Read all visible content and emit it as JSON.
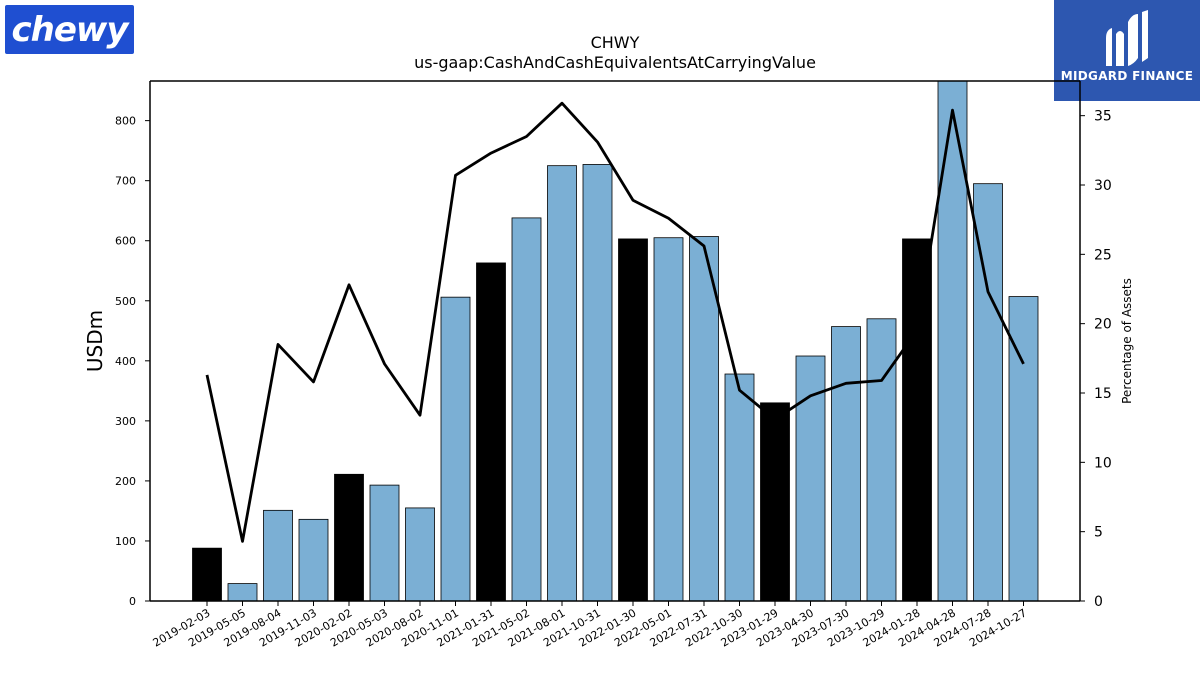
{
  "logos": {
    "left_text": "chewy",
    "right_text": "MIDGARD FINANCE"
  },
  "chart_data": {
    "type": "bar",
    "title": "CHWY",
    "subtitle": "us-gaap:CashAndCashEquivalentsAtCarryingValue",
    "xlabel": "",
    "ylabel": "USDm",
    "y2label": "Percentage of Assets",
    "ylim": [
      0,
      866
    ],
    "y2lim": [
      0,
      37.5
    ],
    "yticks": [
      0,
      100,
      200,
      300,
      400,
      500,
      600,
      700,
      800
    ],
    "y2ticks": [
      0,
      5,
      10,
      15,
      20,
      25,
      30,
      35
    ],
    "categories": [
      "2019-02-03",
      "2019-05-05",
      "2019-08-04",
      "2019-11-03",
      "2020-02-02",
      "2020-05-03",
      "2020-08-02",
      "2020-11-01",
      "2021-01-31",
      "2021-05-02",
      "2021-08-01",
      "2021-10-31",
      "2022-01-30",
      "2022-05-01",
      "2022-07-31",
      "2022-10-30",
      "2023-01-29",
      "2023-04-30",
      "2023-07-30",
      "2023-10-29",
      "2024-01-28",
      "2024-04-28",
      "2024-07-28",
      "2024-10-27"
    ],
    "series": [
      {
        "type": "bar",
        "axis": "left",
        "values": [
          88,
          29,
          151,
          136,
          211,
          193,
          155,
          506,
          563,
          638,
          725,
          727,
          603,
          605,
          607,
          378,
          330,
          408,
          457,
          470,
          603,
          870,
          695,
          507
        ],
        "colors": [
          "#000000",
          "#7bafd4",
          "#7bafd4",
          "#7bafd4",
          "#000000",
          "#7bafd4",
          "#7bafd4",
          "#7bafd4",
          "#000000",
          "#7bafd4",
          "#7bafd4",
          "#7bafd4",
          "#000000",
          "#7bafd4",
          "#7bafd4",
          "#7bafd4",
          "#000000",
          "#7bafd4",
          "#7bafd4",
          "#7bafd4",
          "#000000",
          "#7bafd4",
          "#7bafd4",
          "#7bafd4"
        ]
      },
      {
        "type": "line",
        "axis": "right",
        "color": "#000000",
        "values": [
          16.3,
          4.3,
          18.5,
          15.8,
          22.8,
          17.1,
          13.4,
          30.7,
          32.3,
          33.5,
          35.9,
          33.1,
          28.9,
          27.6,
          25.6,
          15.2,
          13.1,
          14.8,
          15.7,
          15.9,
          19.5,
          35.4,
          22.3,
          17.1
        ]
      }
    ],
    "grid": false,
    "legend": "none"
  }
}
